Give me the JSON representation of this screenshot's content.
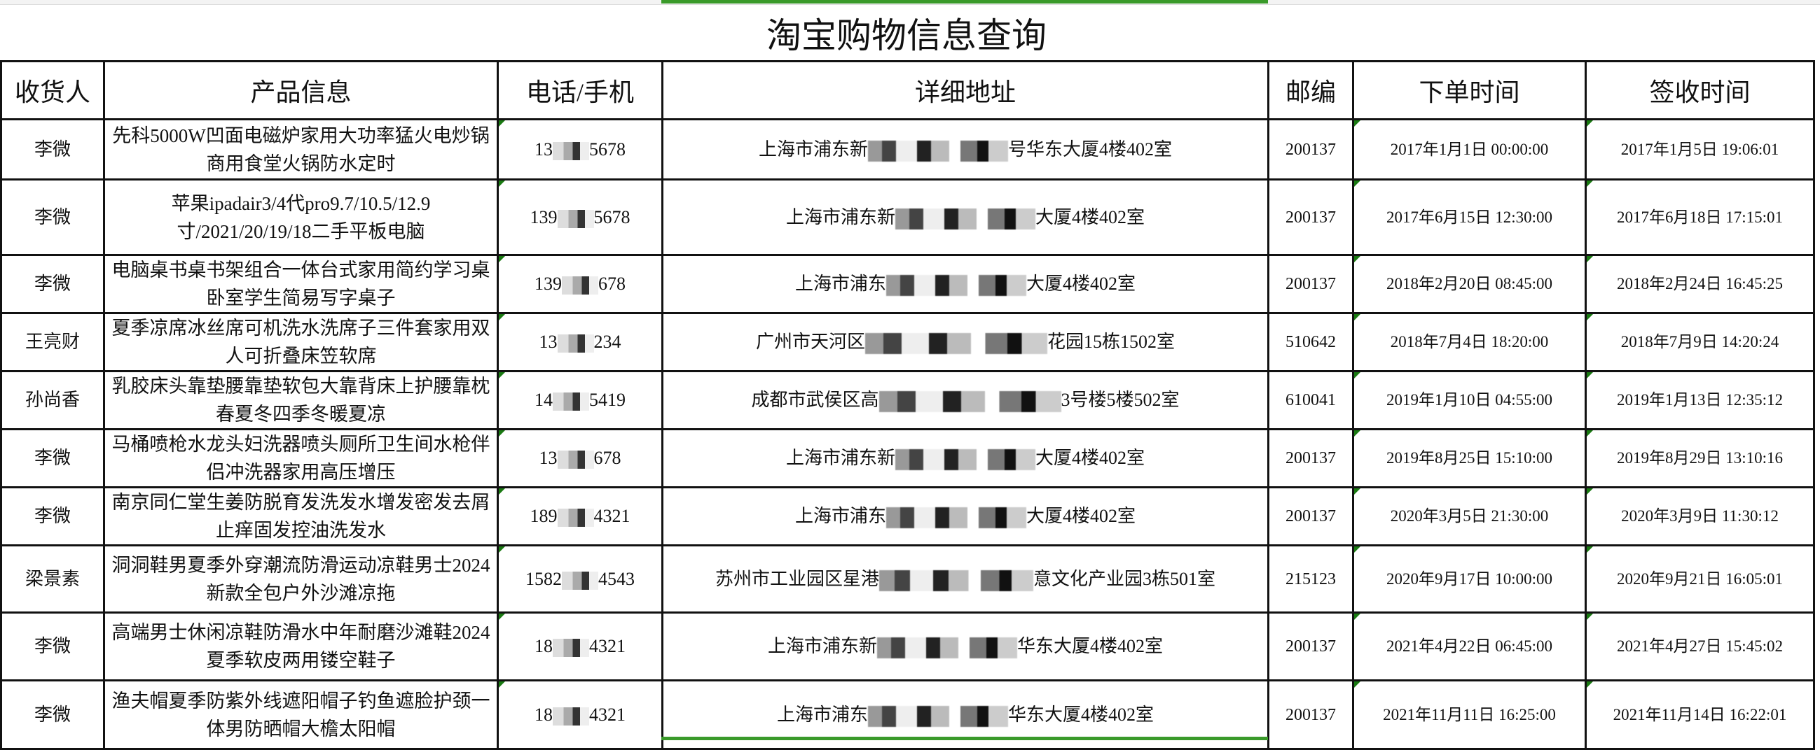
{
  "title": "淘宝购物信息查询",
  "columns": [
    "收货人",
    "产品信息",
    "电话/手机",
    "详细地址",
    "邮编",
    "下单时间",
    "签收时间"
  ],
  "accent_color": "#3a9a2a",
  "rows": [
    {
      "name": "李微",
      "product": "先科5000W凹面电磁炉家用大功率猛火电炒锅商用食堂火锅防水定时",
      "phone_start": "13",
      "phone_end": "5678",
      "addr_start": "上海市浦东新",
      "addr_end": "号华东大厦4楼402室",
      "zip": "200137",
      "order": "2017年1月1日 00:00:00",
      "sign": "2017年1月5日 19:06:01"
    },
    {
      "name": "李微",
      "product": "苹果ipadair3/4代pro9.7/10.5/12.9寸/2021/20/19/18二手平板电脑",
      "phone_start": "139",
      "phone_end": "5678",
      "addr_start": "上海市浦东新",
      "addr_end": "大厦4楼402室",
      "zip": "200137",
      "order": "2017年6月15日 12:30:00",
      "sign": "2017年6月18日 17:15:01"
    },
    {
      "name": "李微",
      "product": "电脑桌书桌书架组合一体台式家用简约学习桌卧室学生简易写字桌子",
      "phone_start": "139",
      "phone_end": "678",
      "addr_start": "上海市浦东",
      "addr_end": "大厦4楼402室",
      "zip": "200137",
      "order": "2018年2月20日 08:45:00",
      "sign": "2018年2月24日 16:45:25"
    },
    {
      "name": "王亮财",
      "product": "夏季凉席冰丝席可机洗水洗席子三件套家用双人可折叠床笠软席",
      "phone_start": "13",
      "phone_end": "234",
      "addr_start": "广州市天河区",
      "addr_end": "花园15栋1502室",
      "zip": "510642",
      "order": "2018年7月4日 18:20:00",
      "sign": "2018年7月9日 14:20:24"
    },
    {
      "name": "孙尚香",
      "product": "乳胶床头靠垫腰靠垫软包大靠背床上护腰靠枕春夏冬四季冬暖夏凉",
      "phone_start": "14",
      "phone_end": "5419",
      "addr_start": "成都市武侯区高",
      "addr_end": "3号楼5楼502室",
      "zip": "610041",
      "order": "2019年1月10日 04:55:00",
      "sign": "2019年1月13日 12:35:12"
    },
    {
      "name": "李微",
      "product": "马桶喷枪水龙头妇洗器喷头厕所卫生间水枪伴侣冲洗器家用高压增压",
      "phone_start": "13",
      "phone_end": "678",
      "addr_start": "上海市浦东新",
      "addr_end": "大厦4楼402室",
      "zip": "200137",
      "order": "2019年8月25日 15:10:00",
      "sign": "2019年8月29日 13:10:16"
    },
    {
      "name": "李微",
      "product": "南京同仁堂生姜防脱育发洗发水增发密发去屑止痒固发控油洗发水",
      "phone_start": "189",
      "phone_end": "4321",
      "addr_start": "上海市浦东",
      "addr_end": "大厦4楼402室",
      "zip": "200137",
      "order": "2020年3月5日 21:30:00",
      "sign": "2020年3月9日 11:30:12"
    },
    {
      "name": "梁景素",
      "product": "洞洞鞋男夏季外穿潮流防滑运动凉鞋男士2024新款全包户外沙滩凉拖",
      "phone_start": "1582",
      "phone_end": "4543",
      "addr_start": "苏州市工业园区星港",
      "addr_end": "意文化产业园3栋501室",
      "zip": "215123",
      "order": "2020年9月17日 10:00:00",
      "sign": "2020年9月21日 16:05:01"
    },
    {
      "name": "李微",
      "product": "高端男士休闲凉鞋防滑水中年耐磨沙滩鞋2024夏季软皮两用镂空鞋子",
      "phone_start": "18",
      "phone_end": "4321",
      "addr_start": "上海市浦东新",
      "addr_end": "华东大厦4楼402室",
      "zip": "200137",
      "order": "2021年4月22日 06:45:00",
      "sign": "2021年4月27日 15:45:02"
    },
    {
      "name": "李微",
      "product": "渔夫帽夏季防紫外线遮阳帽子钓鱼遮脸护颈一体男防晒帽大檐太阳帽",
      "phone_start": "18",
      "phone_end": "4321",
      "addr_start": "上海市浦东",
      "addr_end": "华东大厦4楼402室",
      "zip": "200137",
      "order": "2021年11月11日 16:25:00",
      "sign": "2021年11月14日 16:22:01"
    }
  ]
}
